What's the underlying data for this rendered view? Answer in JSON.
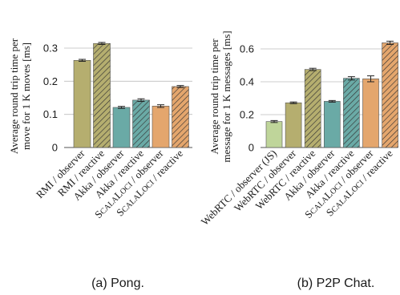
{
  "chart_data": [
    {
      "type": "bar",
      "caption": "(a) Pong.",
      "ylabel": [
        "Average round trip time per",
        "move for 1 K moves [ms]"
      ],
      "ylim": [
        0,
        0.3
      ],
      "yticks": [
        0,
        0.1,
        0.2,
        0.3
      ],
      "grid": "horizontal",
      "categories": [
        "RMI / observer",
        "RMI / reactive",
        "Akka / observer",
        "Akka / reactive",
        "ScalaLoci / observer",
        "ScalaLoci / reactive"
      ],
      "values": [
        0.263,
        0.314,
        0.121,
        0.143,
        0.125,
        0.184
      ],
      "errors": [
        0.003,
        0.003,
        0.003,
        0.004,
        0.004,
        0.003
      ],
      "colors": [
        "#b5ae6f",
        "#b5ae6f",
        "#6aaaa6",
        "#6aaaa6",
        "#e4a66d",
        "#e4a66d"
      ],
      "hatched": [
        false,
        true,
        false,
        true,
        false,
        true
      ]
    },
    {
      "type": "bar",
      "caption": "(b) P2P Chat.",
      "ylabel": [
        "Average round trip time per",
        "message for 1 K messages [ms]"
      ],
      "ylim": [
        0,
        0.6
      ],
      "yticks": [
        0,
        0.2,
        0.4,
        0.6
      ],
      "grid": "horizontal",
      "categories": [
        "WebRTC / observer (JS)",
        "WebRTC / observer",
        "WebRTC / reactive",
        "Akka / observer",
        "Akka / reactive",
        "ScalaLoci / observer",
        "ScalaLoci / reactive"
      ],
      "values": [
        0.158,
        0.272,
        0.475,
        0.281,
        0.421,
        0.418,
        0.637
      ],
      "errors": [
        0.006,
        0.005,
        0.007,
        0.005,
        0.01,
        0.018,
        0.01
      ],
      "colors": [
        "#bfd59a",
        "#b5ae6f",
        "#b5ae6f",
        "#6aaaa6",
        "#6aaaa6",
        "#e4a66d",
        "#e4a66d"
      ],
      "hatched": [
        false,
        false,
        true,
        false,
        true,
        false,
        true
      ]
    }
  ]
}
